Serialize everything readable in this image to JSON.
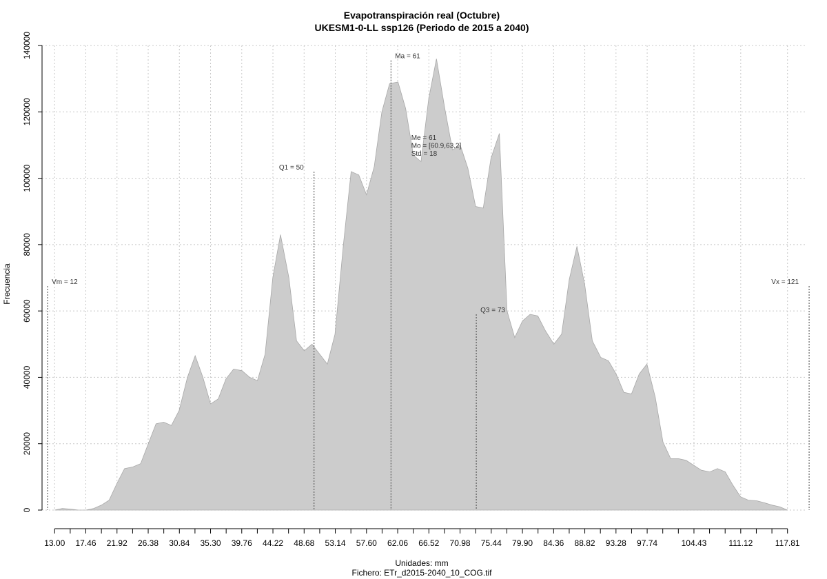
{
  "chart_data": {
    "type": "area",
    "title": "Evapotranspiración real (Octubre)",
    "subtitle": "UKESM1-0-LL ssp126 (Periodo de 2015 a 2040)",
    "xlabel": "Unidades: mm",
    "caption": "Fichero: ETr_d2015-2040_10_COG.tif",
    "ylabel": "Frecuencia",
    "xlim": [
      11.2,
      120.5
    ],
    "ylim": [
      0,
      140000
    ],
    "grid": true,
    "y_ticks": [
      0,
      20000,
      40000,
      60000,
      80000,
      100000,
      120000,
      140000
    ],
    "y_tick_labels": [
      "0",
      "20000",
      "40000",
      "60000",
      "80000",
      "100000",
      "120000",
      "140000"
    ],
    "x_ticks": [
      13.0,
      17.46,
      21.92,
      26.38,
      30.84,
      35.3,
      39.76,
      44.22,
      48.68,
      53.14,
      57.6,
      62.06,
      66.52,
      70.98,
      75.44,
      79.9,
      84.36,
      88.82,
      93.28,
      97.74,
      104.43,
      111.12,
      117.81
    ],
    "x_tick_labels": [
      "13.00",
      "17.46",
      "21.92",
      "26.38",
      "30.84",
      "35.30",
      "39.76",
      "44.22",
      "48.68",
      "53.14",
      "57.60",
      "62.06",
      "66.52",
      "70.98",
      "75.44",
      "79.90",
      "84.36",
      "88.82",
      "93.28",
      "97.74",
      "104.43",
      "111.12",
      "117.81"
    ],
    "x_minor_ticks": [
      15.23,
      19.69,
      24.15,
      28.61,
      33.07,
      37.53,
      41.99,
      46.45,
      50.91,
      55.37,
      59.83,
      64.29,
      68.75,
      73.21,
      77.67,
      82.13,
      86.59,
      91.05,
      95.51,
      99.97,
      102.2,
      106.66,
      108.89,
      113.35,
      115.58
    ],
    "x_grid": [
      13.0,
      17.46,
      21.92,
      26.38,
      30.84,
      35.3,
      39.76,
      44.22,
      48.68,
      53.14,
      57.6,
      62.06,
      66.52,
      70.98,
      75.44,
      79.9,
      84.36,
      88.82,
      93.28,
      97.74,
      104.43,
      111.12,
      117.81
    ],
    "x": [
      13.0,
      14.1,
      15.3,
      16.4,
      17.5,
      18.6,
      19.7,
      20.8,
      21.9,
      23.0,
      24.2,
      25.3,
      26.4,
      27.5,
      28.6,
      29.7,
      30.8,
      32.0,
      33.1,
      34.2,
      35.3,
      36.4,
      37.5,
      38.6,
      39.8,
      40.9,
      42.0,
      43.1,
      44.2,
      45.3,
      46.5,
      47.6,
      48.7,
      49.8,
      50.9,
      52.0,
      53.1,
      54.3,
      55.4,
      56.5,
      57.6,
      58.7,
      59.8,
      60.9,
      62.1,
      63.2,
      64.3,
      65.4,
      66.5,
      67.6,
      68.8,
      69.9,
      71.0,
      72.1,
      73.2,
      74.3,
      75.4,
      76.6,
      77.7,
      78.8,
      79.9,
      81.0,
      82.1,
      83.2,
      84.4,
      85.5,
      86.6,
      87.7,
      88.8,
      89.9,
      91.1,
      92.2,
      93.3,
      94.4,
      95.5,
      96.6,
      97.7,
      98.9,
      100.0,
      101.1,
      102.2,
      103.3,
      104.4,
      105.5,
      106.7,
      107.8,
      108.9,
      110.0,
      111.1,
      112.2,
      113.4,
      114.5,
      115.6,
      116.7,
      117.8
    ],
    "values": [
      0,
      500,
      300,
      0,
      0,
      500,
      1500,
      3000,
      8000,
      12500,
      13000,
      14000,
      20000,
      26000,
      26500,
      25500,
      30000,
      40000,
      46500,
      40000,
      32000,
      33500,
      39500,
      42500,
      42000,
      40000,
      39000,
      47000,
      70000,
      83000,
      70000,
      51000,
      48000,
      50000,
      47000,
      44000,
      53000,
      80000,
      102000,
      101000,
      95000,
      103500,
      120000,
      128500,
      129000,
      121000,
      107000,
      105000,
      124000,
      136000,
      121000,
      108500,
      110000,
      103000,
      91500,
      91000,
      106000,
      113500,
      60000,
      52000,
      57000,
      59000,
      58500,
      54000,
      50000,
      53000,
      69500,
      79500,
      68000,
      51000,
      46000,
      45000,
      41000,
      35500,
      35000,
      41000,
      44000,
      34000,
      20500,
      15500,
      15500,
      15000,
      13500,
      12000,
      11500,
      12500,
      11500,
      7500,
      4000,
      3000,
      2800,
      2200,
      1500,
      1000,
      0
    ],
    "vlines": [
      {
        "x": 12.0,
        "y_top": 67500,
        "label": "Vm = 12",
        "anchor": "start"
      },
      {
        "x": 50.1,
        "y_top": 102000,
        "label": "Q1 = 50",
        "anchor": "end"
      },
      {
        "x": 61.1,
        "y_top": 135500,
        "label": "Ma = 61",
        "anchor": "start"
      },
      {
        "x": 73.3,
        "y_top": 59000,
        "label": "Q3 = 73",
        "anchor": "start"
      },
      {
        "x": 120.9,
        "y_top": 67500,
        "label": "Vx = 121",
        "anchor": "end"
      }
    ],
    "stats": {
      "x": 64.0,
      "y": 111500,
      "lines": [
        "Me = 61",
        "Mo = [60.9,63.2]",
        "Std = 18"
      ]
    },
    "colors": {
      "fill": "#cccccc",
      "stroke": "#a8a8a8"
    }
  }
}
